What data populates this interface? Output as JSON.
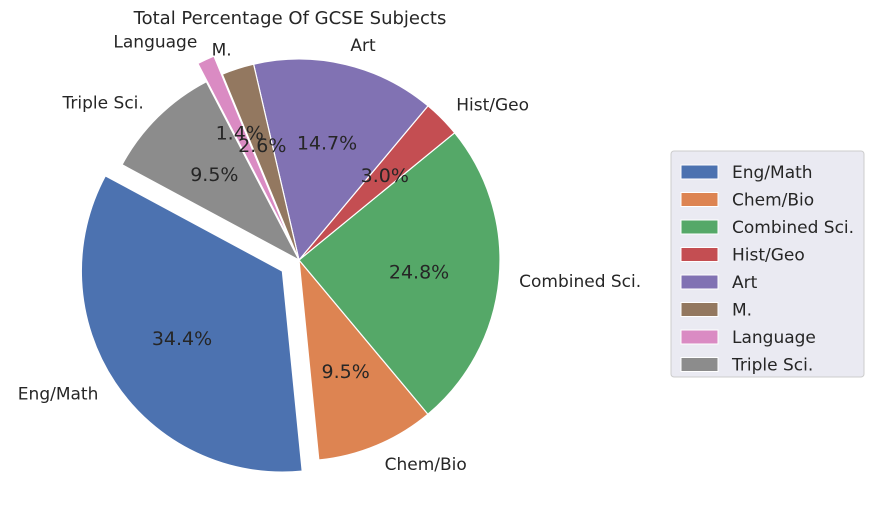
{
  "chart_data": {
    "type": "pie",
    "title": "Total Percentage Of GCSE Subjects",
    "categories": [
      "Eng/Math",
      "Chem/Bio",
      "Combined Sci.",
      "Hist/Geo",
      "Art",
      "M.",
      "Language",
      "Triple Sci."
    ],
    "values": [
      34.4,
      9.5,
      24.8,
      3.0,
      14.7,
      2.6,
      1.4,
      9.5
    ],
    "value_labels": [
      "34.4%",
      "9.5%",
      "24.8%",
      "3.0%",
      "14.7%",
      "2.6%",
      "1.4%",
      "9.5%"
    ],
    "exploded": [
      true,
      false,
      false,
      false,
      false,
      false,
      true,
      false
    ],
    "colors": [
      "#4c72b0",
      "#dd8452",
      "#55a868",
      "#c44e52",
      "#8172b3",
      "#937860",
      "#da8bc3",
      "#8c8c8c"
    ],
    "legend": {
      "placement": "right",
      "entries": [
        "Eng/Math",
        "Chem/Bio",
        "Combined Sci.",
        "Hist/Geo",
        "Art",
        "M.",
        "Language",
        "Triple Sci."
      ],
      "background": "#eaeaf2"
    }
  }
}
